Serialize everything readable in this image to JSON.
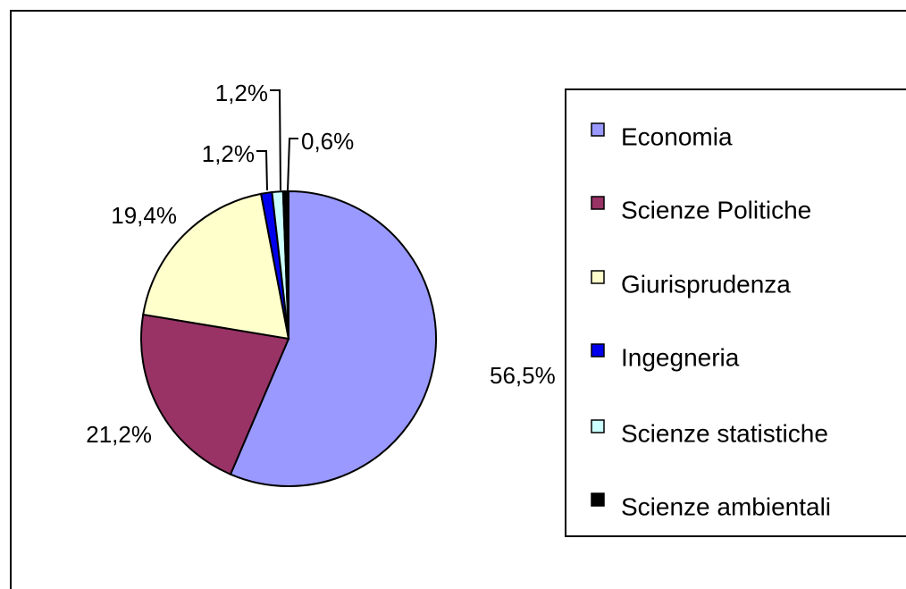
{
  "chart_data": {
    "type": "pie",
    "categories": [
      "Economia",
      "Scienze Politiche",
      "Giurisprudenza",
      "Ingegneria",
      "Scienze statistiche",
      "Scienze ambientali"
    ],
    "values": [
      56.5,
      21.2,
      19.4,
      1.2,
      1.2,
      0.6
    ],
    "value_labels": [
      "56,5%",
      "21,2%",
      "19,4%",
      "1,2%",
      "1,2%",
      "0,6%"
    ],
    "colors": [
      "#9999ff",
      "#993366",
      "#ffffcc",
      "#0000ee",
      "#ccffff",
      "#000000"
    ],
    "legend": "right"
  }
}
